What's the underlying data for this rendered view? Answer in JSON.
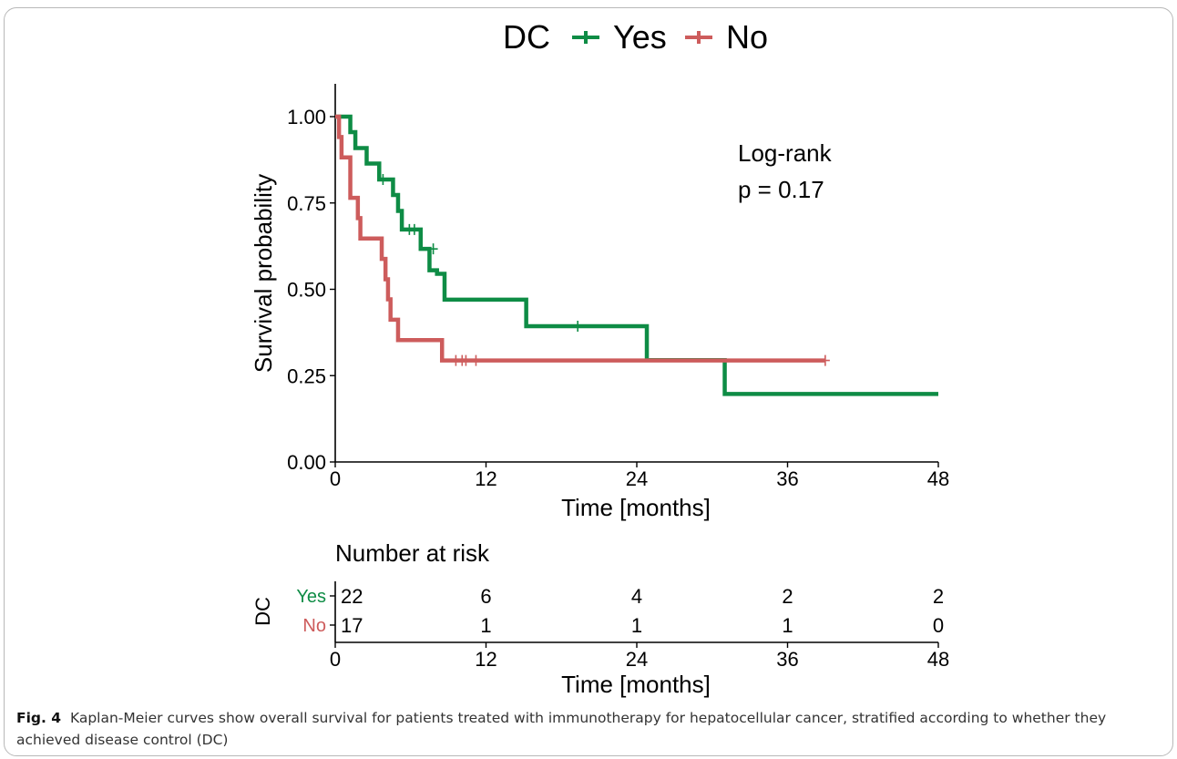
{
  "chart_data": {
    "type": "line",
    "subtype": "kaplan-meier",
    "legend": {
      "title": "DC",
      "position": "top",
      "entries": [
        "Yes",
        "No"
      ]
    },
    "ylabel": "Survival probability",
    "xlabel": "Time [months]",
    "xlim": [
      0,
      48
    ],
    "ylim": [
      0,
      1
    ],
    "x_ticks": [
      0,
      12,
      24,
      36,
      48
    ],
    "y_ticks": [
      "0.00",
      "0.25",
      "0.50",
      "0.75",
      "1.00"
    ],
    "annotation": [
      "Log-rank",
      "p = 0.17"
    ],
    "series": [
      {
        "name": "Yes",
        "color": "#0e8c45",
        "steps": [
          [
            0,
            1.0
          ],
          [
            1.2,
            0.955
          ],
          [
            1.6,
            0.909
          ],
          [
            2.5,
            0.864
          ],
          [
            3.5,
            0.818
          ],
          [
            4.6,
            0.773
          ],
          [
            5.0,
            0.727
          ],
          [
            5.3,
            0.673
          ],
          [
            6.8,
            0.617
          ],
          [
            7.5,
            0.555
          ],
          [
            8.1,
            0.545
          ],
          [
            8.7,
            0.47
          ],
          [
            15.2,
            0.393
          ],
          [
            24.8,
            0.295
          ],
          [
            31.0,
            0.197
          ],
          [
            48.0,
            0.197
          ]
        ],
        "censored": [
          [
            3.8,
            0.818
          ],
          [
            5.9,
            0.673
          ],
          [
            6.3,
            0.673
          ],
          [
            7.8,
            0.617
          ],
          [
            19.3,
            0.393
          ]
        ]
      },
      {
        "name": "No",
        "color": "#cd5c5c",
        "steps": [
          [
            0,
            1.0
          ],
          [
            0.3,
            0.941
          ],
          [
            0.5,
            0.882
          ],
          [
            1.2,
            0.765
          ],
          [
            1.8,
            0.706
          ],
          [
            2.0,
            0.647
          ],
          [
            3.7,
            0.588
          ],
          [
            4.0,
            0.529
          ],
          [
            4.2,
            0.471
          ],
          [
            4.4,
            0.412
          ],
          [
            5.0,
            0.353
          ],
          [
            8.5,
            0.294
          ],
          [
            39.0,
            0.294
          ]
        ],
        "censored": [
          [
            9.6,
            0.294
          ],
          [
            10.1,
            0.294
          ],
          [
            10.4,
            0.294
          ],
          [
            11.2,
            0.294
          ],
          [
            39.0,
            0.294
          ]
        ]
      }
    ],
    "risk_table": {
      "title": "Number at risk",
      "group_label": "DC",
      "xlabel": "Time [months]",
      "times": [
        0,
        12,
        24,
        36,
        48
      ],
      "rows": [
        {
          "name": "Yes",
          "color": "#0e8c45",
          "counts": [
            22,
            6,
            4,
            2,
            2
          ]
        },
        {
          "name": "No",
          "color": "#cd5c5c",
          "counts": [
            17,
            1,
            1,
            1,
            0
          ]
        }
      ]
    }
  },
  "caption": {
    "label": "Fig. 4",
    "text": "Kaplan-Meier curves show overall survival for patients treated with immunotherapy for hepatocellular cancer, stratified according to whether they achieved disease control (DC)"
  }
}
